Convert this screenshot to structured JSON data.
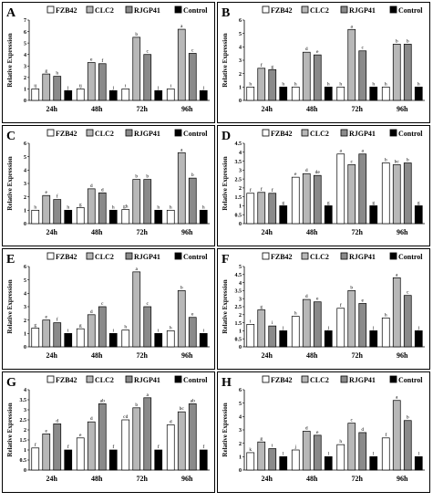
{
  "figure": {
    "legend_labels": [
      "FZB42",
      "CLC2",
      "RJGP41",
      "Control"
    ],
    "y_axis_label": "Relative Expression",
    "colors": {
      "FZB42": "#ffffff",
      "CLC2": "#b8b8b8",
      "RJGP41": "#8a8a8a",
      "Control": "#000000",
      "axis": "#000000"
    }
  },
  "chart_data": [
    {
      "panel": "A",
      "type": "bar",
      "categories": [
        "24h",
        "48h",
        "72h",
        "96h"
      ],
      "ylim": [
        0,
        7
      ],
      "yticks": [
        0,
        1,
        2,
        3,
        4,
        5,
        6,
        7
      ],
      "ylabel": "Relative Expression",
      "legend": "top",
      "grid": false,
      "series": [
        {
          "name": "FZB42",
          "values": [
            1,
            1,
            1,
            1
          ],
          "letters": [
            "ij",
            "ij",
            "i",
            "i"
          ]
        },
        {
          "name": "CLC2",
          "values": [
            2.3,
            3.3,
            5.5,
            6.2
          ],
          "letters": [
            "g",
            "e",
            "b",
            "a"
          ]
        },
        {
          "name": "RJGP41",
          "values": [
            2.1,
            3.2,
            4.0,
            4.1
          ],
          "letters": [
            "h",
            "f",
            "c",
            "c"
          ]
        },
        {
          "name": "Control",
          "values": [
            0.85,
            0.85,
            0.85,
            0.85
          ],
          "letters": [
            "j",
            "j",
            "j",
            "j"
          ]
        }
      ]
    },
    {
      "panel": "B",
      "type": "bar",
      "categories": [
        "24h",
        "48h",
        "72h",
        "96h"
      ],
      "ylim": [
        0,
        6
      ],
      "yticks": [
        0,
        1,
        2,
        3,
        4,
        5,
        6
      ],
      "ylabel": "Relative Expression",
      "legend": "top",
      "grid": false,
      "series": [
        {
          "name": "FZB42",
          "values": [
            1,
            1,
            1,
            1
          ],
          "letters": [
            "h",
            "h",
            "h",
            "h"
          ]
        },
        {
          "name": "CLC2",
          "values": [
            2.4,
            3.6,
            5.3,
            4.2
          ],
          "letters": [
            "f",
            "d",
            "a",
            "b"
          ]
        },
        {
          "name": "RJGP41",
          "values": [
            2.3,
            3.4,
            3.7,
            4.2
          ],
          "letters": [
            "g",
            "e",
            "c",
            "b"
          ]
        },
        {
          "name": "Control",
          "values": [
            1,
            1,
            1,
            1
          ],
          "letters": [
            "h",
            "h",
            "h",
            "h"
          ]
        }
      ]
    },
    {
      "panel": "C",
      "type": "bar",
      "categories": [
        "24h",
        "48h",
        "72h",
        "96h"
      ],
      "ylim": [
        0,
        6
      ],
      "yticks": [
        0,
        1,
        2,
        3,
        4,
        5,
        6
      ],
      "ylabel": "Relative Expression",
      "legend": "top",
      "grid": false,
      "series": [
        {
          "name": "FZB42",
          "values": [
            1,
            1.2,
            1.05,
            1
          ],
          "letters": [
            "h",
            "g",
            "gh",
            "h"
          ]
        },
        {
          "name": "CLC2",
          "values": [
            2.1,
            2.6,
            3.3,
            5.3
          ],
          "letters": [
            "e",
            "d",
            "b",
            "a"
          ]
        },
        {
          "name": "RJGP41",
          "values": [
            1.8,
            2.3,
            3.3,
            3.4
          ],
          "letters": [
            "f",
            "d",
            "b",
            "b"
          ]
        },
        {
          "name": "Control",
          "values": [
            1,
            1,
            1,
            1
          ],
          "letters": [
            "h",
            "h",
            "h",
            "h"
          ]
        }
      ]
    },
    {
      "panel": "D",
      "type": "bar",
      "categories": [
        "24h",
        "48h",
        "72h",
        "96h"
      ],
      "ylim": [
        0,
        4.5
      ],
      "yticks": [
        0,
        0.5,
        1,
        1.5,
        2,
        2.5,
        3,
        3.5,
        4,
        4.5
      ],
      "ylabel": "Relative Expression",
      "legend": "top",
      "grid": false,
      "series": [
        {
          "name": "FZB42",
          "values": [
            1.7,
            2.6,
            3.9,
            3.4
          ],
          "letters": [
            "f",
            "e",
            "a",
            "b"
          ]
        },
        {
          "name": "CLC2",
          "values": [
            1.75,
            2.8,
            3.3,
            3.3
          ],
          "letters": [
            "f",
            "d",
            "c",
            "bc"
          ]
        },
        {
          "name": "RJGP41",
          "values": [
            1.7,
            2.7,
            3.9,
            3.4
          ],
          "letters": [
            "f",
            "de",
            "a",
            "b"
          ]
        },
        {
          "name": "Control",
          "values": [
            1,
            1,
            1,
            1
          ],
          "letters": [
            "g",
            "g",
            "g",
            "g"
          ]
        }
      ]
    },
    {
      "panel": "E",
      "type": "bar",
      "categories": [
        "24h",
        "48h",
        "72h",
        "96h"
      ],
      "ylim": [
        0,
        6
      ],
      "yticks": [
        0,
        1,
        2,
        3,
        4,
        5,
        6
      ],
      "ylabel": "Relative Expression",
      "legend": "top",
      "grid": false,
      "series": [
        {
          "name": "FZB42",
          "values": [
            1.4,
            1.35,
            1.25,
            1.2
          ],
          "letters": [
            "g",
            "g",
            "h",
            "h"
          ]
        },
        {
          "name": "CLC2",
          "values": [
            2.0,
            2.4,
            5.6,
            4.2
          ],
          "letters": [
            "e",
            "d",
            "a",
            "b"
          ]
        },
        {
          "name": "RJGP41",
          "values": [
            1.8,
            3.0,
            3.0,
            2.2
          ],
          "letters": [
            "f",
            "c",
            "c",
            "e"
          ]
        },
        {
          "name": "Control",
          "values": [
            1,
            1,
            1,
            1
          ],
          "letters": [
            "i",
            "i",
            "i",
            "i"
          ]
        }
      ]
    },
    {
      "panel": "F",
      "type": "bar",
      "categories": [
        "24h",
        "48h",
        "72h",
        "96h"
      ],
      "ylim": [
        0,
        5
      ],
      "yticks": [
        0,
        0.5,
        1,
        1.5,
        2,
        2.5,
        3,
        3.5,
        4,
        4.5,
        5
      ],
      "ylabel": "Relative Expression",
      "legend": "top",
      "grid": false,
      "series": [
        {
          "name": "FZB42",
          "values": [
            1.4,
            1.9,
            2.4,
            1.8
          ],
          "letters": [
            "i",
            "h",
            "f",
            "h"
          ]
        },
        {
          "name": "CLC2",
          "values": [
            2.3,
            2.95,
            3.5,
            4.3
          ],
          "letters": [
            "g",
            "d",
            "b",
            "a"
          ]
        },
        {
          "name": "RJGP41",
          "values": [
            1.3,
            2.8,
            2.7,
            3.2
          ],
          "letters": [
            "i",
            "e",
            "e",
            "c"
          ]
        },
        {
          "name": "Control",
          "values": [
            1,
            1,
            1,
            1
          ],
          "letters": [
            "j",
            "j",
            "j",
            "j"
          ]
        }
      ]
    },
    {
      "panel": "G",
      "type": "bar",
      "categories": [
        "24h",
        "48h",
        "72h",
        "96h"
      ],
      "ylim": [
        0,
        4
      ],
      "yticks": [
        0,
        0.5,
        1,
        1.5,
        2,
        2.5,
        3,
        3.5,
        4
      ],
      "ylabel": "Relative Expression",
      "legend": "top",
      "grid": false,
      "series": [
        {
          "name": "FZB42",
          "values": [
            1.1,
            1.6,
            2.5,
            2.25
          ],
          "letters": [
            "f",
            "e",
            "cd",
            "d"
          ]
        },
        {
          "name": "CLC2",
          "values": [
            1.8,
            2.4,
            3.1,
            2.9
          ],
          "letters": [
            "e",
            "d",
            "b",
            "bc"
          ]
        },
        {
          "name": "RJGP41",
          "values": [
            2.3,
            3.3,
            3.6,
            3.3
          ],
          "letters": [
            "d",
            "ab",
            "a",
            "ab"
          ]
        },
        {
          "name": "Control",
          "values": [
            1,
            1,
            1,
            1
          ],
          "letters": [
            "f",
            "f",
            "f",
            "f"
          ]
        }
      ]
    },
    {
      "panel": "H",
      "type": "bar",
      "categories": [
        "24h",
        "48h",
        "72h",
        "96h"
      ],
      "ylim": [
        0,
        6
      ],
      "yticks": [
        0,
        1,
        2,
        3,
        4,
        5,
        6
      ],
      "ylabel": "Relative Expression",
      "legend": "top",
      "grid": false,
      "series": [
        {
          "name": "FZB42",
          "values": [
            1.3,
            1.5,
            1.9,
            2.4
          ],
          "letters": [
            "k",
            "j",
            "h",
            "f"
          ]
        },
        {
          "name": "CLC2",
          "values": [
            2.1,
            2.9,
            3.5,
            5.2
          ],
          "letters": [
            "g",
            "d",
            "c",
            "a"
          ]
        },
        {
          "name": "RJGP41",
          "values": [
            1.6,
            2.6,
            2.8,
            3.7
          ],
          "letters": [
            "i",
            "e",
            "d",
            "b"
          ]
        },
        {
          "name": "Control",
          "values": [
            1,
            1,
            1,
            1
          ],
          "letters": [
            "l",
            "l",
            "l",
            "l"
          ]
        }
      ]
    }
  ]
}
